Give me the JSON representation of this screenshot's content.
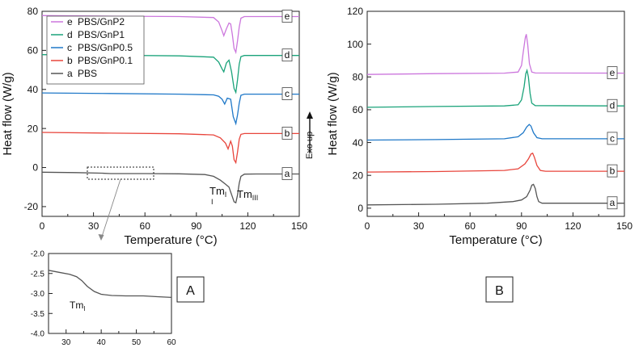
{
  "panels": {
    "A": {
      "tag": "A"
    },
    "B": {
      "tag": "B"
    }
  },
  "annotations": {
    "exo_up": "Exo up",
    "tm1_main": "Tm",
    "tm1_main_sub": "I",
    "tm1_main_extra": "I",
    "tm3_main": "Tm",
    "tm3_main_sub": "III",
    "tm1_inset": "Tm",
    "tm1_inset_sub": "I"
  },
  "colors": {
    "a": "#555555",
    "b": "#e8453c",
    "c": "#1f78c8",
    "d": "#1aa37a",
    "e": "#cc77dd"
  },
  "chart_data": [
    {
      "id": "A",
      "type": "line",
      "title": "",
      "xlabel": "Temperature (°C)",
      "ylabel": "Heat flow (W/g)",
      "xlim": [
        0,
        150
      ],
      "ylim": [
        -25,
        80
      ],
      "xticks": [
        0,
        30,
        60,
        90,
        120,
        150
      ],
      "yticks": [
        -20,
        0,
        20,
        40,
        60,
        80
      ],
      "legend": {
        "position": "top-left",
        "entries": [
          {
            "letter": "e",
            "name": "PBS/GnP2",
            "series": "e"
          },
          {
            "letter": "d",
            "name": "PBS/GnP1",
            "series": "d"
          },
          {
            "letter": "c",
            "name": "PBS/GnP0.5",
            "series": "c"
          },
          {
            "letter": "b",
            "name": "PBS/GnP0.1",
            "series": "b"
          },
          {
            "letter": "a",
            "name": "PBS",
            "series": "a"
          }
        ]
      },
      "series": [
        {
          "key": "a",
          "label": "a",
          "points": [
            [
              0,
              -2.4
            ],
            [
              20,
              -2.6
            ],
            [
              35,
              -2.9
            ],
            [
              40,
              -3.1
            ],
            [
              60,
              -3.1
            ],
            [
              80,
              -3.2
            ],
            [
              95,
              -3.6
            ],
            [
              100,
              -4.5
            ],
            [
              104,
              -6.5
            ],
            [
              107,
              -8.5
            ],
            [
              109,
              -10.0
            ],
            [
              110,
              -12.5
            ],
            [
              111,
              -15
            ],
            [
              112,
              -17.5
            ],
            [
              113,
              -18
            ],
            [
              114,
              -14
            ],
            [
              115,
              -8
            ],
            [
              116,
              -4.5
            ],
            [
              118,
              -3.4
            ],
            [
              125,
              -3.3
            ],
            [
              150,
              -3.3
            ]
          ]
        },
        {
          "key": "b",
          "label": "b",
          "points": [
            [
              0,
              18
            ],
            [
              40,
              17.6
            ],
            [
              80,
              17.3
            ],
            [
              100,
              16.7
            ],
            [
              104,
              15.2
            ],
            [
              107,
              12.5
            ],
            [
              108.5,
              9.5
            ],
            [
              110,
              13.5
            ],
            [
              111,
              11
            ],
            [
              112,
              4
            ],
            [
              113,
              2.5
            ],
            [
              114,
              8
            ],
            [
              115,
              14.5
            ],
            [
              116,
              17
            ],
            [
              118,
              17.4
            ],
            [
              150,
              17.4
            ]
          ]
        },
        {
          "key": "c",
          "label": "c",
          "points": [
            [
              0,
              38.2
            ],
            [
              40,
              37.9
            ],
            [
              80,
              37.6
            ],
            [
              100,
              37.2
            ],
            [
              103,
              36.5
            ],
            [
              105,
              35
            ],
            [
              106.5,
              32.5
            ],
            [
              108,
              35.5
            ],
            [
              110,
              35
            ],
            [
              111.5,
              26
            ],
            [
              113,
              22.5
            ],
            [
              114,
              27
            ],
            [
              115,
              33
            ],
            [
              116,
              37
            ],
            [
              118,
              37.6
            ],
            [
              150,
              37.6
            ]
          ]
        },
        {
          "key": "d",
          "label": "d",
          "points": [
            [
              0,
              57.8
            ],
            [
              40,
              57.5
            ],
            [
              80,
              57.2
            ],
            [
              100,
              56.5
            ],
            [
              103,
              54
            ],
            [
              105,
              50.5
            ],
            [
              106,
              49
            ],
            [
              107.5,
              53.5
            ],
            [
              109,
              55
            ],
            [
              110.5,
              49
            ],
            [
              112,
              40.5
            ],
            [
              113,
              38.5
            ],
            [
              114,
              45
            ],
            [
              115,
              53
            ],
            [
              116,
              56.8
            ],
            [
              118,
              57.4
            ],
            [
              150,
              57.4
            ]
          ]
        },
        {
          "key": "e",
          "label": "e",
          "points": [
            [
              0,
              77.8
            ],
            [
              40,
              77.5
            ],
            [
              80,
              77.3
            ],
            [
              100,
              76.8
            ],
            [
              103,
              74.5
            ],
            [
              105,
              70
            ],
            [
              106,
              67.5
            ],
            [
              107.5,
              71
            ],
            [
              109,
              74
            ],
            [
              110,
              73.5
            ],
            [
              111,
              68
            ],
            [
              112,
              61
            ],
            [
              113,
              59
            ],
            [
              114,
              65
            ],
            [
              115,
              72
            ],
            [
              116,
              76.5
            ],
            [
              118,
              77.3
            ],
            [
              150,
              77.3
            ]
          ]
        }
      ]
    },
    {
      "id": "B",
      "type": "line",
      "title": "",
      "xlabel": "Temperature (°C)",
      "ylabel": "Heat flow (W/g)",
      "xlim": [
        0,
        150
      ],
      "ylim": [
        -5,
        120
      ],
      "xticks": [
        0,
        30,
        60,
        90,
        120,
        150
      ],
      "yticks": [
        0,
        20,
        40,
        60,
        80,
        100,
        120
      ],
      "series": [
        {
          "key": "a",
          "label": "a",
          "points": [
            [
              0,
              2
            ],
            [
              40,
              2.4
            ],
            [
              70,
              3
            ],
            [
              85,
              4
            ],
            [
              90,
              5
            ],
            [
              93,
              7
            ],
            [
              95,
              11
            ],
            [
              96,
              14
            ],
            [
              97,
              14.5
            ],
            [
              98,
              12
            ],
            [
              99,
              7
            ],
            [
              100,
              4
            ],
            [
              102,
              3
            ],
            [
              150,
              3
            ]
          ]
        },
        {
          "key": "b",
          "label": "b",
          "points": [
            [
              0,
              22
            ],
            [
              40,
              22.3
            ],
            [
              80,
              23
            ],
            [
              88,
              24
            ],
            [
              92,
              27
            ],
            [
              94,
              30
            ],
            [
              95.5,
              33
            ],
            [
              96.5,
              33.5
            ],
            [
              97.5,
              31
            ],
            [
              99,
              26
            ],
            [
              101,
              23
            ],
            [
              104,
              22.5
            ],
            [
              150,
              22.5
            ]
          ]
        },
        {
          "key": "c",
          "label": "c",
          "points": [
            [
              0,
              41.5
            ],
            [
              40,
              41.8
            ],
            [
              80,
              42.3
            ],
            [
              88,
              43.5
            ],
            [
              91,
              46
            ],
            [
              93,
              49.5
            ],
            [
              94.5,
              51
            ],
            [
              95.5,
              50
            ],
            [
              97,
              46
            ],
            [
              99,
              43
            ],
            [
              102,
              42.3
            ],
            [
              150,
              42.3
            ]
          ]
        },
        {
          "key": "d",
          "label": "d",
          "points": [
            [
              0,
              61.5
            ],
            [
              40,
              62
            ],
            [
              80,
              62.3
            ],
            [
              88,
              63
            ],
            [
              90,
              66
            ],
            [
              91.5,
              74
            ],
            [
              92.5,
              82
            ],
            [
              93.2,
              84
            ],
            [
              94,
              80
            ],
            [
              95,
              70
            ],
            [
              96,
              64
            ],
            [
              98,
              62.5
            ],
            [
              150,
              62.3
            ]
          ]
        },
        {
          "key": "e",
          "label": "e",
          "points": [
            [
              0,
              81.5
            ],
            [
              40,
              82
            ],
            [
              80,
              82.3
            ],
            [
              88,
              83
            ],
            [
              90,
              87
            ],
            [
              91,
              95
            ],
            [
              92.2,
              104
            ],
            [
              92.8,
              106
            ],
            [
              93.6,
              100
            ],
            [
              94.6,
              88
            ],
            [
              96,
              83
            ],
            [
              98,
              82.4
            ],
            [
              150,
              82.3
            ]
          ]
        }
      ]
    },
    {
      "id": "inset",
      "type": "line",
      "title": "",
      "xlabel": "",
      "ylabel": "",
      "xlim": [
        25,
        60
      ],
      "ylim": [
        -4.0,
        -2.0
      ],
      "xticks": [
        30,
        40,
        50,
        60
      ],
      "yticks": [
        -2.0,
        -2.5,
        -3.0,
        -3.5,
        -4.0
      ],
      "yticklabels": [
        "-2.0",
        "-2.5",
        "-3.0",
        "-3.5",
        "-4.0"
      ],
      "series": [
        {
          "key": "a",
          "points": [
            [
              25,
              -2.42
            ],
            [
              28,
              -2.47
            ],
            [
              31,
              -2.52
            ],
            [
              33,
              -2.58
            ],
            [
              34.5,
              -2.68
            ],
            [
              36,
              -2.82
            ],
            [
              38,
              -2.95
            ],
            [
              40,
              -3.02
            ],
            [
              43,
              -3.05
            ],
            [
              47,
              -3.06
            ],
            [
              52,
              -3.06
            ],
            [
              56,
              -3.08
            ],
            [
              60,
              -3.1
            ]
          ]
        }
      ]
    }
  ]
}
